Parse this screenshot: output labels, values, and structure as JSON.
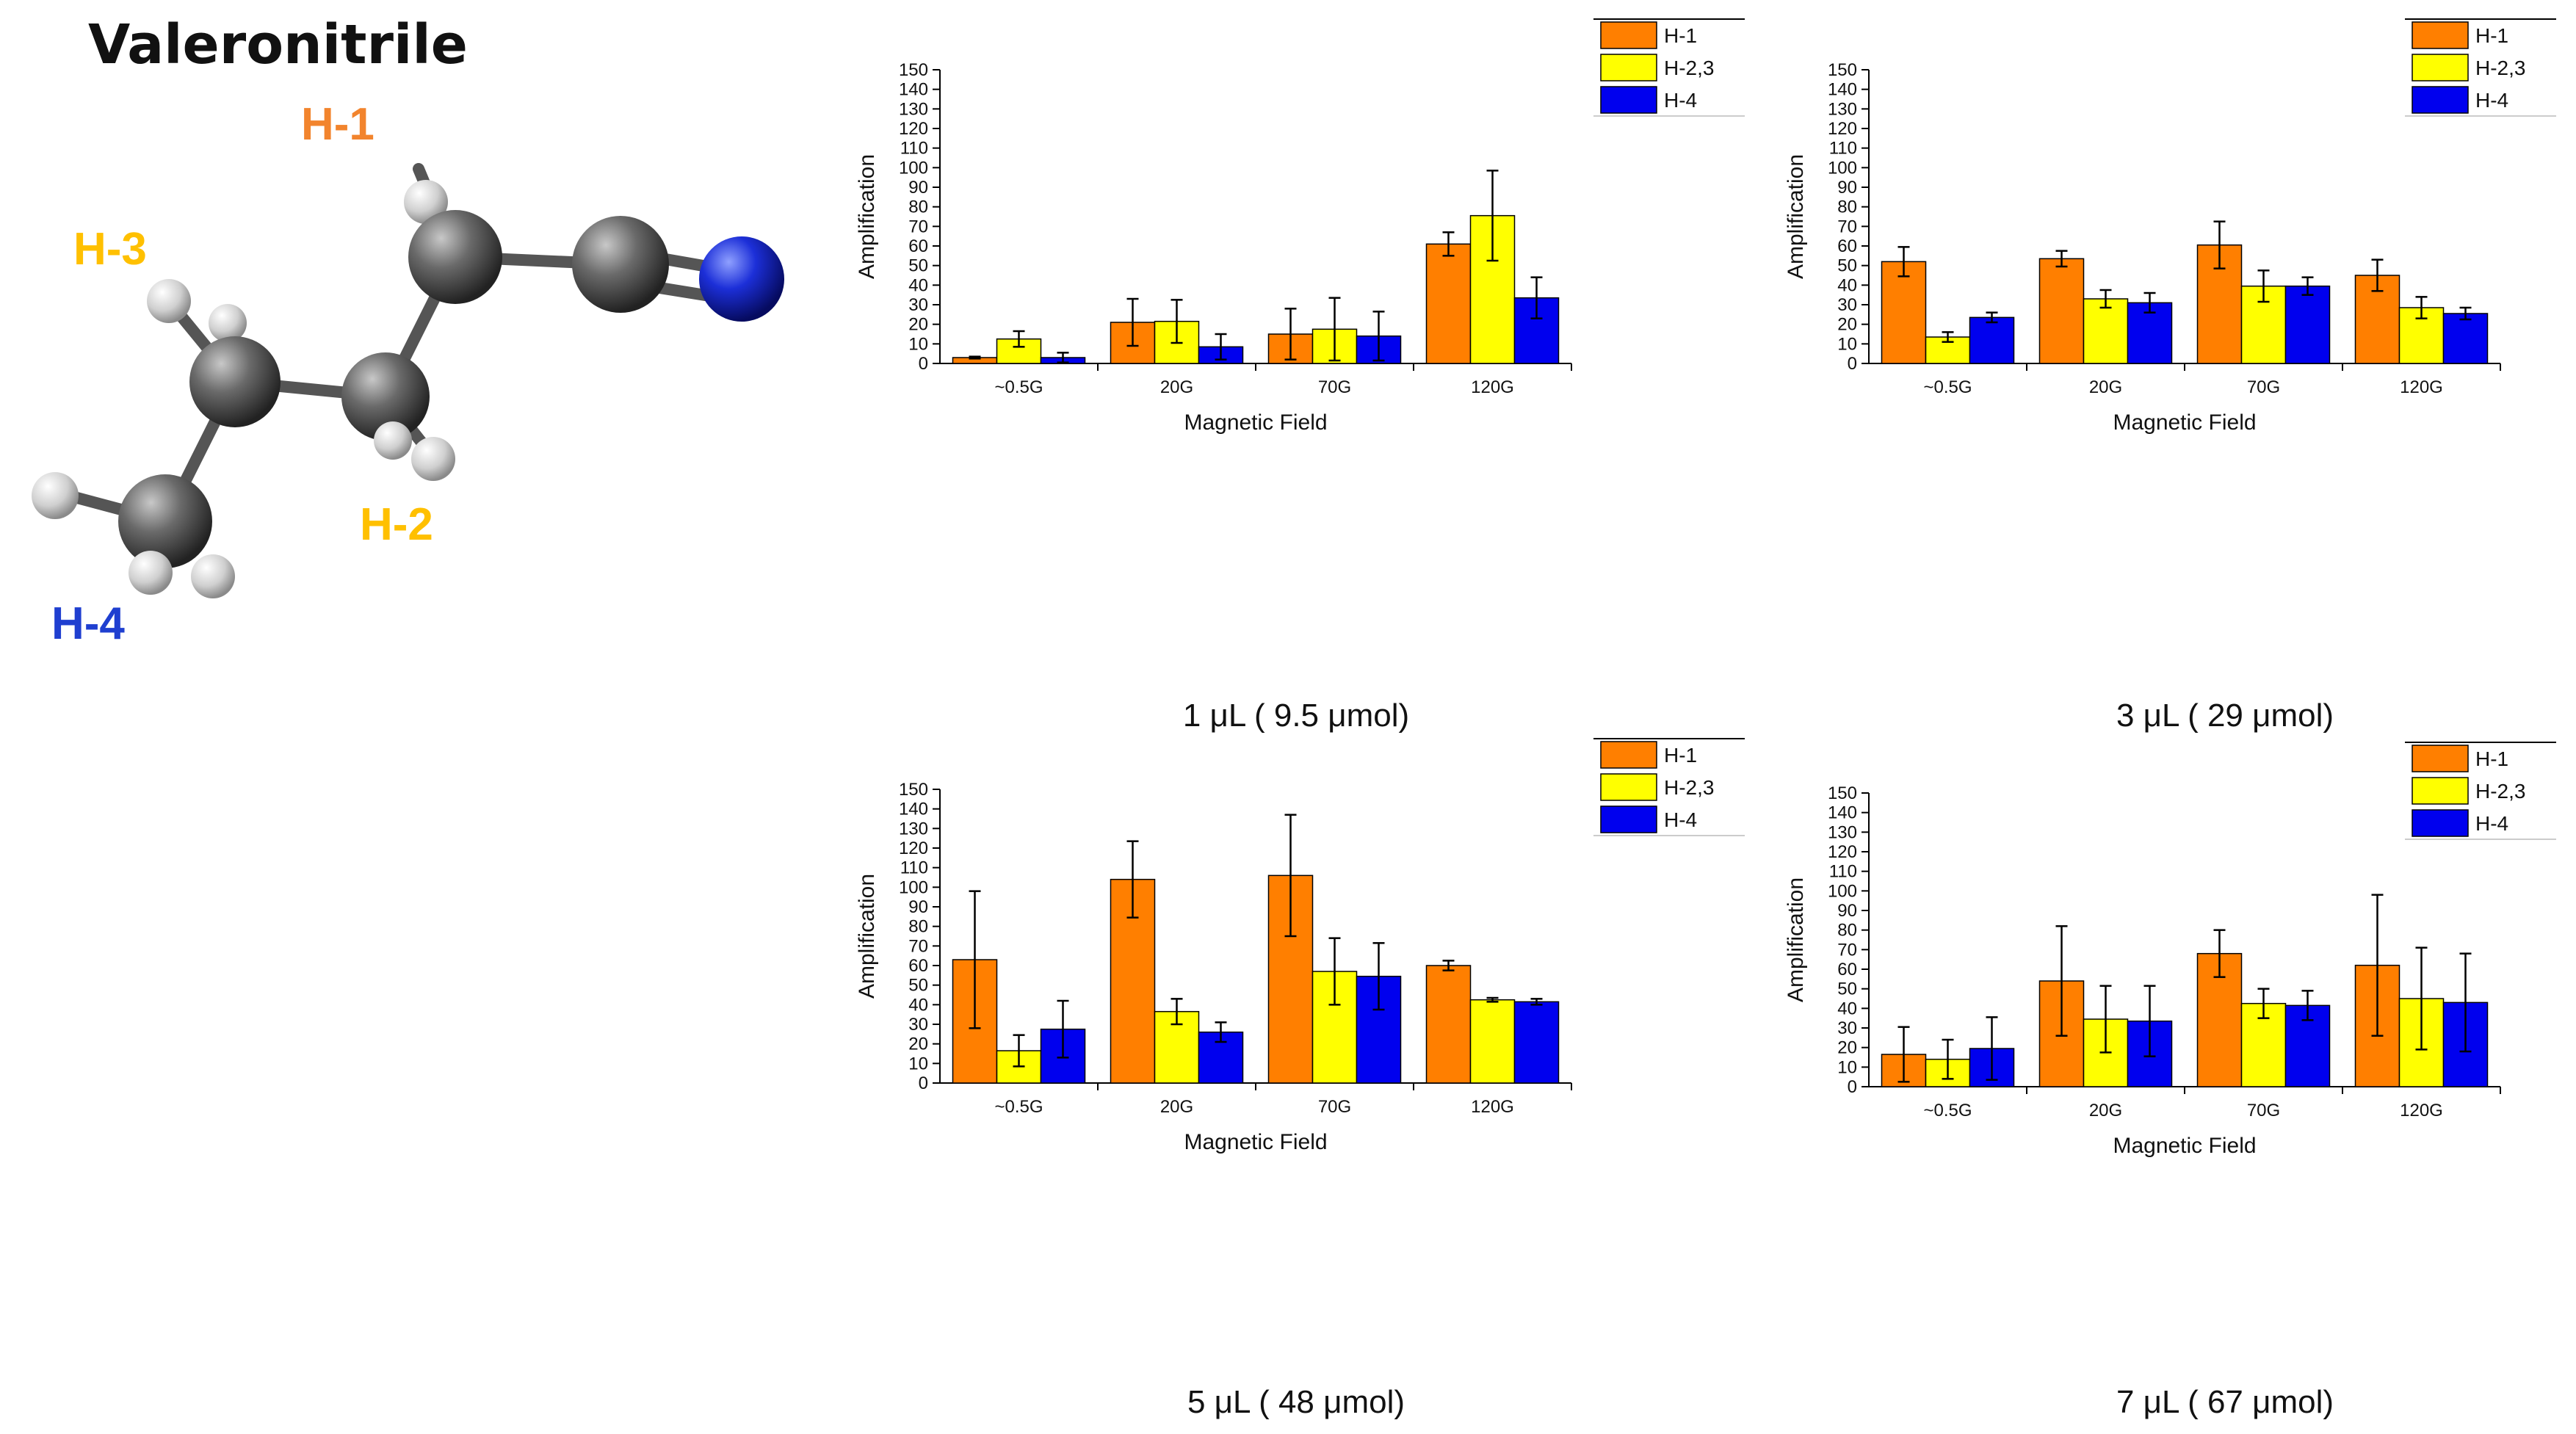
{
  "title": "Valeronitrile",
  "molecule": {
    "labels": [
      {
        "text": "H-1",
        "color": "#f2842d"
      },
      {
        "text": "H-3",
        "color": "#ffc000"
      },
      {
        "text": "H-2",
        "color": "#ffc000"
      },
      {
        "text": "H-4",
        "color": "#1f3fd0"
      }
    ]
  },
  "colors": {
    "H-1": "#ff7f00",
    "H-2,3": "#ffff00",
    "H-4": "#0000ee"
  },
  "chart_data": [
    {
      "type": "bar",
      "caption": "1 μL ( 9.5 μmol)",
      "xlabel": "Magnetic Field",
      "ylabel": "Amplification",
      "ylim": [
        0,
        150
      ],
      "yticks": [
        "0",
        "10",
        "20",
        "30",
        "40",
        "50",
        "60",
        "70",
        "80",
        "90",
        "100",
        "110",
        "120",
        "130",
        "140",
        "150"
      ],
      "categories": [
        "~0.5G",
        "20G",
        "70G",
        "120G"
      ],
      "legend": [
        "H-1",
        "H-2,3",
        "H-4"
      ],
      "legend_position": "top-right",
      "series": [
        {
          "name": "H-1",
          "values": [
            3,
            21,
            15,
            61
          ],
          "errors": [
            0.5,
            12,
            13,
            6
          ]
        },
        {
          "name": "H-2,3",
          "values": [
            12.5,
            21.5,
            17.5,
            75.5
          ],
          "errors": [
            4,
            11,
            16,
            23
          ]
        },
        {
          "name": "H-4",
          "values": [
            3,
            8.5,
            14,
            33.5
          ],
          "errors": [
            2.5,
            6.5,
            12.5,
            10.5
          ]
        }
      ]
    },
    {
      "type": "bar",
      "caption": "3 μL ( 29 μmol)",
      "xlabel": "Magnetic Field",
      "ylabel": "Amplification",
      "ylim": [
        0,
        150
      ],
      "yticks": [
        "0",
        "10",
        "20",
        "30",
        "40",
        "50",
        "60",
        "70",
        "80",
        "90",
        "100",
        "110",
        "120",
        "130",
        "140",
        "150"
      ],
      "categories": [
        "~0.5G",
        "20G",
        "70G",
        "120G"
      ],
      "legend": [
        "H-1",
        "H-2,3",
        "H-4"
      ],
      "legend_position": "top-right",
      "series": [
        {
          "name": "H-1",
          "values": [
            52,
            53.5,
            60.5,
            45
          ],
          "errors": [
            7.5,
            4,
            12,
            8
          ]
        },
        {
          "name": "H-2,3",
          "values": [
            13.5,
            33,
            39.5,
            28.5
          ],
          "errors": [
            2.5,
            4.5,
            8,
            5.5
          ]
        },
        {
          "name": "H-4",
          "values": [
            23.5,
            31,
            39.5,
            25.5
          ],
          "errors": [
            2.5,
            5,
            4.5,
            3
          ]
        }
      ]
    },
    {
      "type": "bar",
      "caption": "5 μL ( 48 μmol)",
      "xlabel": "Magnetic Field",
      "ylabel": "Amplification",
      "ylim": [
        0,
        150
      ],
      "yticks": [
        "0",
        "10",
        "20",
        "30",
        "40",
        "50",
        "60",
        "70",
        "80",
        "90",
        "100",
        "110",
        "120",
        "130",
        "140",
        "150"
      ],
      "categories": [
        "~0.5G",
        "20G",
        "70G",
        "120G"
      ],
      "legend": [
        "H-1",
        "H-2,3",
        "H-4"
      ],
      "legend_position": "top-right",
      "series": [
        {
          "name": "H-1",
          "values": [
            63,
            104,
            106,
            60
          ],
          "errors": [
            35,
            19.5,
            31,
            2.5
          ]
        },
        {
          "name": "H-2,3",
          "values": [
            16.5,
            36.5,
            57,
            42.5
          ],
          "errors": [
            8,
            6.5,
            17,
            1
          ]
        },
        {
          "name": "H-4",
          "values": [
            27.5,
            26,
            54.5,
            41.5
          ],
          "errors": [
            14.5,
            5,
            17,
            1.5
          ]
        }
      ]
    },
    {
      "type": "bar",
      "caption": "7 μL ( 67 μmol)",
      "xlabel": "Magnetic Field",
      "ylabel": "Amplification",
      "ylim": [
        0,
        150
      ],
      "yticks": [
        "0",
        "10",
        "20",
        "30",
        "40",
        "50",
        "60",
        "70",
        "80",
        "90",
        "100",
        "110",
        "120",
        "130",
        "140",
        "150"
      ],
      "categories": [
        "~0.5G",
        "20G",
        "70G",
        "120G"
      ],
      "legend": [
        "H-1",
        "H-2,3",
        "H-4"
      ],
      "legend_position": "top-right",
      "series": [
        {
          "name": "H-1",
          "values": [
            16.5,
            54,
            68,
            62
          ],
          "errors": [
            14,
            28,
            12,
            36
          ]
        },
        {
          "name": "H-2,3",
          "values": [
            14,
            34.5,
            42.5,
            45
          ],
          "errors": [
            10,
            17,
            7.5,
            26
          ]
        },
        {
          "name": "H-4",
          "values": [
            19.5,
            33.5,
            41.5,
            43
          ],
          "errors": [
            16,
            18,
            7.5,
            25
          ]
        }
      ]
    }
  ]
}
